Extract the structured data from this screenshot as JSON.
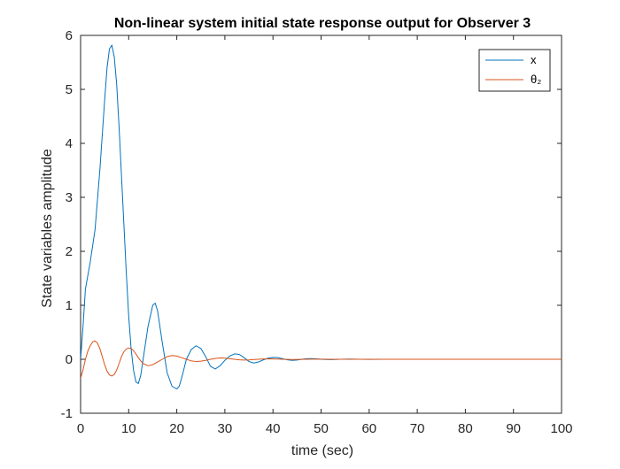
{
  "chart_data": {
    "type": "line",
    "title": "Non-linear system initial state response output for Observer 3",
    "xlabel": "time (sec)",
    "ylabel": "State variables amplitude",
    "xlim": [
      0,
      100
    ],
    "ylim": [
      -1,
      6
    ],
    "xticks": [
      0,
      10,
      20,
      30,
      40,
      50,
      60,
      70,
      80,
      90,
      100
    ],
    "yticks": [
      -1,
      0,
      1,
      2,
      3,
      4,
      5,
      6
    ],
    "grid": false,
    "legend_position": "top-right",
    "series": [
      {
        "name": "x",
        "color": "#0072BD",
        "x": [
          0,
          0.5,
          1,
          2,
          3,
          4,
          5,
          5.5,
          6,
          6.5,
          7,
          7.5,
          8,
          8.5,
          9,
          9.5,
          10,
          10.5,
          11,
          11.5,
          12,
          12.5,
          13,
          14,
          15,
          15.5,
          16,
          17,
          18,
          19,
          20,
          20.5,
          21,
          22,
          23,
          24,
          25,
          26,
          27,
          28,
          29,
          30,
          31,
          32,
          33,
          34,
          35,
          36,
          37,
          38,
          39,
          40,
          41,
          42,
          43,
          44,
          45,
          46,
          47,
          48,
          49,
          50,
          51,
          52,
          54,
          56,
          58,
          60,
          63,
          66,
          70,
          75,
          80,
          85,
          90,
          95,
          100
        ],
        "y": [
          0,
          0.6,
          1.3,
          1.8,
          2.4,
          3.5,
          4.8,
          5.4,
          5.75,
          5.82,
          5.6,
          5.1,
          4.3,
          3.4,
          2.5,
          1.6,
          0.8,
          0.2,
          -0.2,
          -0.42,
          -0.45,
          -0.3,
          0.0,
          0.6,
          1.0,
          1.04,
          0.9,
          0.3,
          -0.25,
          -0.5,
          -0.55,
          -0.5,
          -0.35,
          0.0,
          0.18,
          0.25,
          0.2,
          0.05,
          -0.13,
          -0.18,
          -0.12,
          -0.02,
          0.06,
          0.1,
          0.09,
          0.03,
          -0.04,
          -0.07,
          -0.05,
          -0.01,
          0.02,
          0.035,
          0.03,
          0.01,
          -0.01,
          -0.02,
          -0.015,
          0.0,
          0.01,
          0.012,
          0.008,
          0.0,
          -0.005,
          -0.006,
          0.0,
          0.004,
          0.0,
          -0.002,
          0.0,
          0.001,
          0.0,
          0.0,
          0.0,
          0.0,
          0.0,
          0.0,
          0.0
        ]
      },
      {
        "name": "θ₂",
        "color": "#D95319",
        "x": [
          0,
          0.5,
          1,
          1.5,
          2,
          2.5,
          3,
          3.5,
          4,
          4.5,
          5,
          5.5,
          6,
          6.5,
          7,
          7.5,
          8,
          8.5,
          9,
          9.5,
          10,
          10.5,
          11,
          11.5,
          12,
          12.5,
          13,
          14,
          15,
          16,
          17,
          18,
          19,
          20,
          21,
          22,
          23,
          24,
          25,
          26,
          27,
          28,
          29,
          30,
          31,
          32,
          33,
          34,
          35,
          36,
          37,
          38,
          39,
          40,
          42,
          44,
          46,
          48,
          50,
          52,
          54,
          56,
          58,
          60,
          65,
          70,
          75,
          80,
          85,
          90,
          95,
          100
        ],
        "y": [
          -0.35,
          -0.2,
          0.0,
          0.15,
          0.25,
          0.32,
          0.34,
          0.3,
          0.2,
          0.05,
          -0.1,
          -0.22,
          -0.29,
          -0.31,
          -0.28,
          -0.2,
          -0.08,
          0.05,
          0.14,
          0.19,
          0.21,
          0.2,
          0.16,
          0.1,
          0.03,
          -0.03,
          -0.08,
          -0.12,
          -0.1,
          -0.05,
          0.0,
          0.05,
          0.07,
          0.06,
          0.03,
          0.0,
          -0.03,
          -0.04,
          -0.035,
          -0.02,
          0.0,
          0.015,
          0.025,
          0.022,
          0.01,
          0.0,
          -0.01,
          -0.015,
          -0.012,
          -0.005,
          0.0,
          0.006,
          0.008,
          0.006,
          0.0,
          -0.004,
          -0.002,
          0.002,
          0.002,
          0.0,
          -0.001,
          0.0,
          0.0,
          0.0,
          0.0,
          0.0,
          0.0,
          0.0,
          0.0,
          0.0,
          0.0,
          0.0
        ]
      }
    ]
  }
}
